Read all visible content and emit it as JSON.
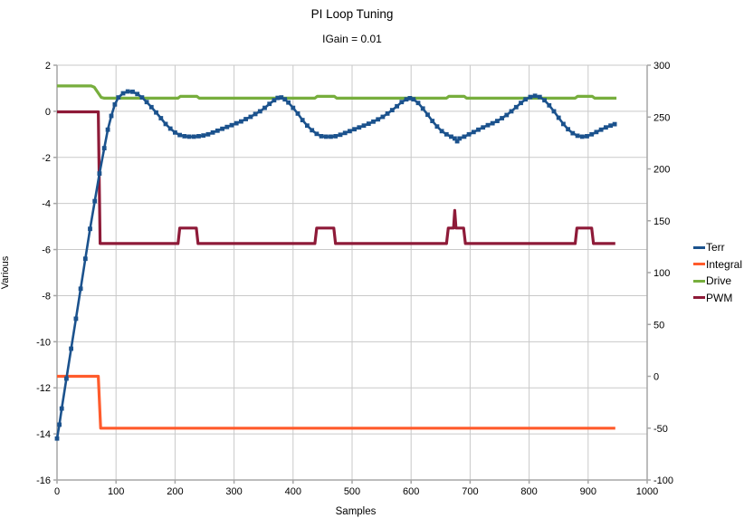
{
  "title": "PI Loop Tuning",
  "subtitle": "IGain = 0.01",
  "colors": {
    "terr": "#1B528D",
    "integral": "#FF5B2C",
    "drive": "#77AE3D",
    "pwm": "#8E1A38",
    "gridline": "#C9C9C9",
    "axis_line": "#A6A6A6",
    "text": "#000000",
    "background": "#FFFFFF"
  },
  "chart_data": {
    "type": "line",
    "title": "PI Loop Tuning",
    "subtitle": "IGain = 0.01",
    "xlabel": "Samples",
    "ylabel_left": "Various",
    "ylabel_right": "",
    "xlim": [
      0,
      1000
    ],
    "ylim_left": [
      -16,
      2
    ],
    "ylim_right": [
      -100,
      300
    ],
    "x_ticks": [
      0,
      100,
      200,
      300,
      400,
      500,
      600,
      700,
      800,
      900,
      1000
    ],
    "y_left_ticks": [
      2,
      0,
      -2,
      -4,
      -6,
      -8,
      -10,
      -12,
      -14,
      -16
    ],
    "y_right_ticks": [
      300,
      250,
      200,
      150,
      100,
      50,
      0,
      -50,
      -100
    ],
    "grid": true,
    "legend_position": "right",
    "legend_entries": [
      "Terr",
      "Integral",
      "Drive",
      "PWM"
    ],
    "draw_order": [
      "Integral",
      "Drive",
      "PWM",
      "Terr"
    ],
    "series": [
      {
        "name": "Terr",
        "axis": "left",
        "color": "#1B528D",
        "marker": "square",
        "points": [
          [
            0,
            -14.2
          ],
          [
            4,
            -13.6
          ],
          [
            8,
            -12.9
          ],
          [
            16,
            -11.6
          ],
          [
            24,
            -10.3
          ],
          [
            32,
            -9.0
          ],
          [
            40,
            -7.7
          ],
          [
            48,
            -6.4
          ],
          [
            56,
            -5.1
          ],
          [
            64,
            -3.9
          ],
          [
            72,
            -2.7
          ],
          [
            80,
            -1.6
          ],
          [
            86,
            -0.8
          ],
          [
            92,
            -0.2
          ],
          [
            98,
            0.3
          ],
          [
            104,
            0.6
          ],
          [
            112,
            0.78
          ],
          [
            120,
            0.86
          ],
          [
            128,
            0.85
          ],
          [
            136,
            0.75
          ],
          [
            144,
            0.6
          ],
          [
            152,
            0.4
          ],
          [
            160,
            0.18
          ],
          [
            168,
            -0.05
          ],
          [
            176,
            -0.3
          ],
          [
            184,
            -0.55
          ],
          [
            192,
            -0.75
          ],
          [
            200,
            -0.92
          ],
          [
            208,
            -1.03
          ],
          [
            216,
            -1.08
          ],
          [
            224,
            -1.1
          ],
          [
            232,
            -1.1
          ],
          [
            240,
            -1.08
          ],
          [
            248,
            -1.05
          ],
          [
            256,
            -1.0
          ],
          [
            264,
            -0.92
          ],
          [
            272,
            -0.84
          ],
          [
            280,
            -0.76
          ],
          [
            288,
            -0.68
          ],
          [
            296,
            -0.6
          ],
          [
            304,
            -0.52
          ],
          [
            312,
            -0.44
          ],
          [
            320,
            -0.34
          ],
          [
            328,
            -0.24
          ],
          [
            336,
            -0.12
          ],
          [
            344,
            0.0
          ],
          [
            352,
            0.15
          ],
          [
            360,
            0.32
          ],
          [
            368,
            0.48
          ],
          [
            374,
            0.58
          ],
          [
            380,
            0.6
          ],
          [
            386,
            0.52
          ],
          [
            392,
            0.38
          ],
          [
            400,
            0.15
          ],
          [
            408,
            -0.1
          ],
          [
            416,
            -0.38
          ],
          [
            424,
            -0.62
          ],
          [
            432,
            -0.82
          ],
          [
            440,
            -0.98
          ],
          [
            448,
            -1.08
          ],
          [
            456,
            -1.1
          ],
          [
            464,
            -1.1
          ],
          [
            472,
            -1.08
          ],
          [
            480,
            -1.02
          ],
          [
            488,
            -0.94
          ],
          [
            496,
            -0.86
          ],
          [
            504,
            -0.78
          ],
          [
            512,
            -0.7
          ],
          [
            520,
            -0.62
          ],
          [
            528,
            -0.54
          ],
          [
            536,
            -0.45
          ],
          [
            544,
            -0.35
          ],
          [
            552,
            -0.24
          ],
          [
            560,
            -0.1
          ],
          [
            568,
            0.05
          ],
          [
            576,
            0.22
          ],
          [
            584,
            0.4
          ],
          [
            592,
            0.52
          ],
          [
            598,
            0.57
          ],
          [
            604,
            0.52
          ],
          [
            612,
            0.36
          ],
          [
            620,
            0.12
          ],
          [
            628,
            -0.15
          ],
          [
            636,
            -0.42
          ],
          [
            644,
            -0.66
          ],
          [
            652,
            -0.86
          ],
          [
            660,
            -1.0
          ],
          [
            668,
            -1.1
          ],
          [
            674,
            -1.18
          ],
          [
            678,
            -1.3
          ],
          [
            682,
            -1.18
          ],
          [
            690,
            -1.1
          ],
          [
            698,
            -1.0
          ],
          [
            706,
            -0.9
          ],
          [
            714,
            -0.8
          ],
          [
            722,
            -0.7
          ],
          [
            730,
            -0.6
          ],
          [
            738,
            -0.52
          ],
          [
            746,
            -0.42
          ],
          [
            754,
            -0.3
          ],
          [
            762,
            -0.16
          ],
          [
            770,
            0.0
          ],
          [
            778,
            0.18
          ],
          [
            786,
            0.36
          ],
          [
            794,
            0.52
          ],
          [
            802,
            0.62
          ],
          [
            810,
            0.67
          ],
          [
            818,
            0.62
          ],
          [
            826,
            0.48
          ],
          [
            834,
            0.26
          ],
          [
            842,
            0.0
          ],
          [
            850,
            -0.28
          ],
          [
            858,
            -0.55
          ],
          [
            866,
            -0.78
          ],
          [
            874,
            -0.95
          ],
          [
            882,
            -1.06
          ],
          [
            890,
            -1.1
          ],
          [
            898,
            -1.08
          ],
          [
            906,
            -1.0
          ],
          [
            914,
            -0.9
          ],
          [
            922,
            -0.8
          ],
          [
            930,
            -0.7
          ],
          [
            938,
            -0.62
          ],
          [
            945,
            -0.56
          ]
        ]
      },
      {
        "name": "Integral",
        "axis": "left",
        "color": "#FF5B2C",
        "marker": "none",
        "points": [
          [
            0,
            -11.5
          ],
          [
            70,
            -11.5
          ],
          [
            74,
            -13.75
          ],
          [
            946,
            -13.75
          ]
        ]
      },
      {
        "name": "Drive",
        "axis": "left",
        "color": "#77AE3D",
        "marker": "none",
        "points": [
          [
            0,
            1.1
          ],
          [
            58,
            1.1
          ],
          [
            63,
            1.05
          ],
          [
            75,
            0.6
          ],
          [
            80,
            0.57
          ],
          [
            205,
            0.57
          ],
          [
            209,
            0.65
          ],
          [
            237,
            0.65
          ],
          [
            241,
            0.57
          ],
          [
            437,
            0.57
          ],
          [
            441,
            0.65
          ],
          [
            470,
            0.65
          ],
          [
            474,
            0.57
          ],
          [
            660,
            0.57
          ],
          [
            664,
            0.65
          ],
          [
            690,
            0.65
          ],
          [
            694,
            0.57
          ],
          [
            878,
            0.57
          ],
          [
            882,
            0.65
          ],
          [
            907,
            0.65
          ],
          [
            911,
            0.57
          ],
          [
            948,
            0.57
          ]
        ]
      },
      {
        "name": "PWM",
        "axis": "right",
        "color": "#8E1A38",
        "marker": "none",
        "points": [
          [
            0,
            255
          ],
          [
            70,
            255
          ],
          [
            73,
            128
          ],
          [
            205,
            128
          ],
          [
            208,
            143
          ],
          [
            236,
            143
          ],
          [
            239,
            128
          ],
          [
            437,
            128
          ],
          [
            440,
            143
          ],
          [
            469,
            143
          ],
          [
            472,
            128
          ],
          [
            660,
            128
          ],
          [
            663,
            143
          ],
          [
            672,
            143
          ],
          [
            674,
            160
          ],
          [
            676,
            143
          ],
          [
            689,
            143
          ],
          [
            692,
            128
          ],
          [
            878,
            128
          ],
          [
            881,
            143
          ],
          [
            906,
            143
          ],
          [
            909,
            128
          ],
          [
            946,
            128
          ]
        ]
      }
    ]
  }
}
